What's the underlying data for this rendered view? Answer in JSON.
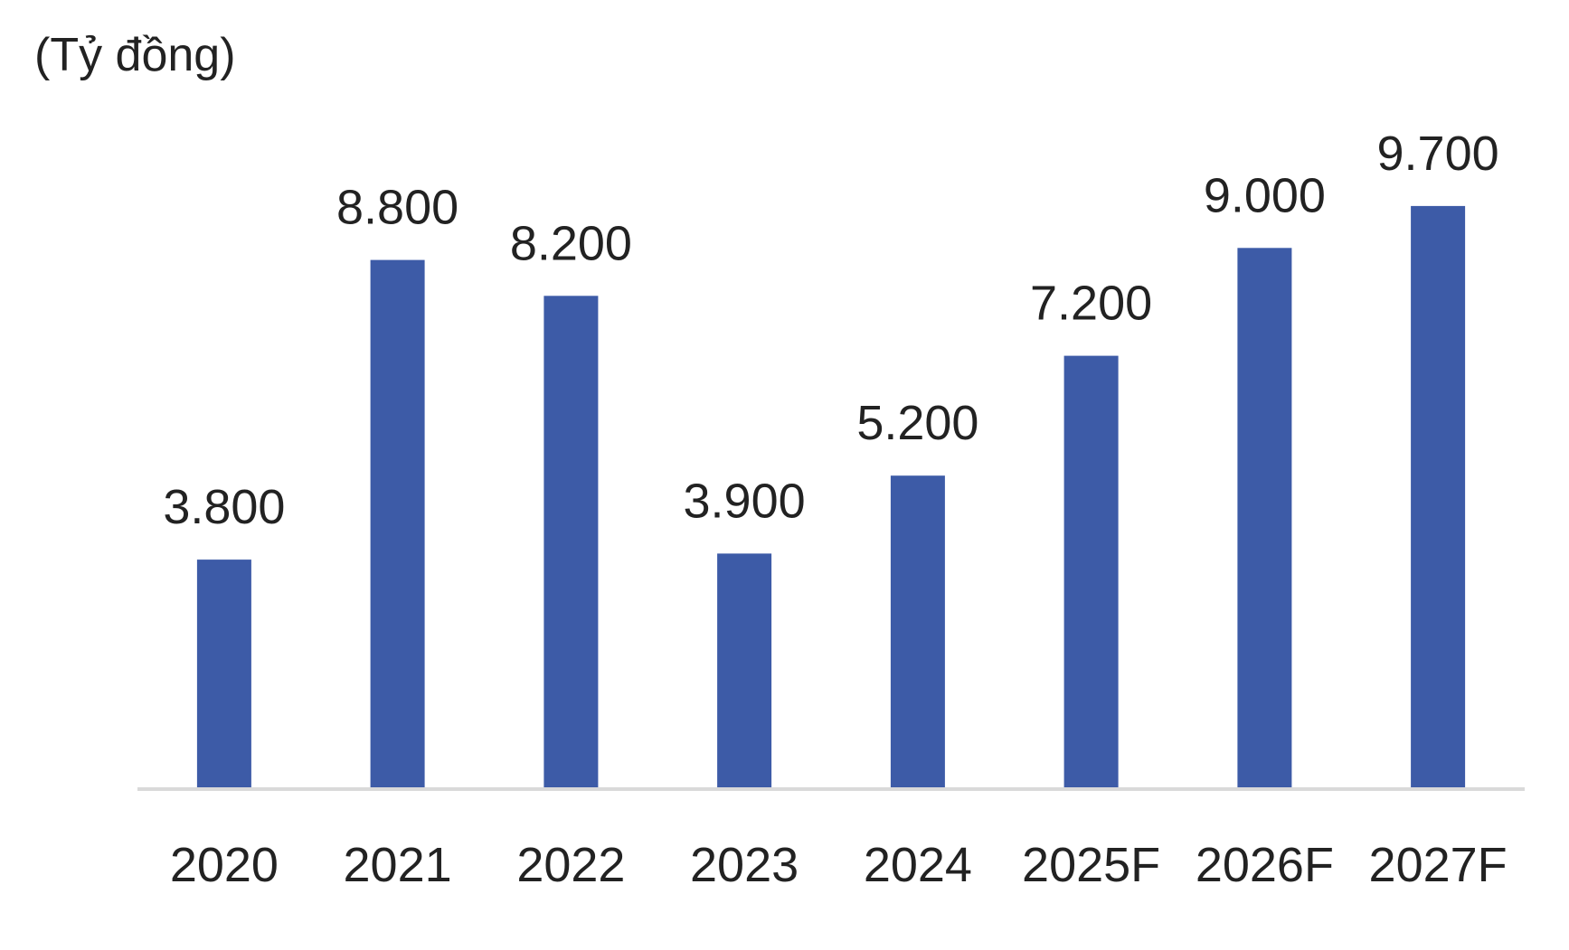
{
  "chart_data": {
    "type": "bar",
    "unit_label": "(Tỷ đồng)",
    "categories": [
      "2020",
      "2021",
      "2022",
      "2023",
      "2024",
      "2025F",
      "2026F",
      "2027F"
    ],
    "values": [
      3800,
      8800,
      8200,
      3900,
      5200,
      7200,
      9000,
      9700
    ],
    "value_labels": [
      "3.800",
      "8.800",
      "8.200",
      "3.900",
      "5.200",
      "7.200",
      "9.000",
      "9.700"
    ],
    "ylim": [
      0,
      10000
    ],
    "grid": false,
    "legend": "none",
    "bar_color": "#3d5ba7",
    "axis_color": "#d9d9d9",
    "text_color": "#222222"
  }
}
